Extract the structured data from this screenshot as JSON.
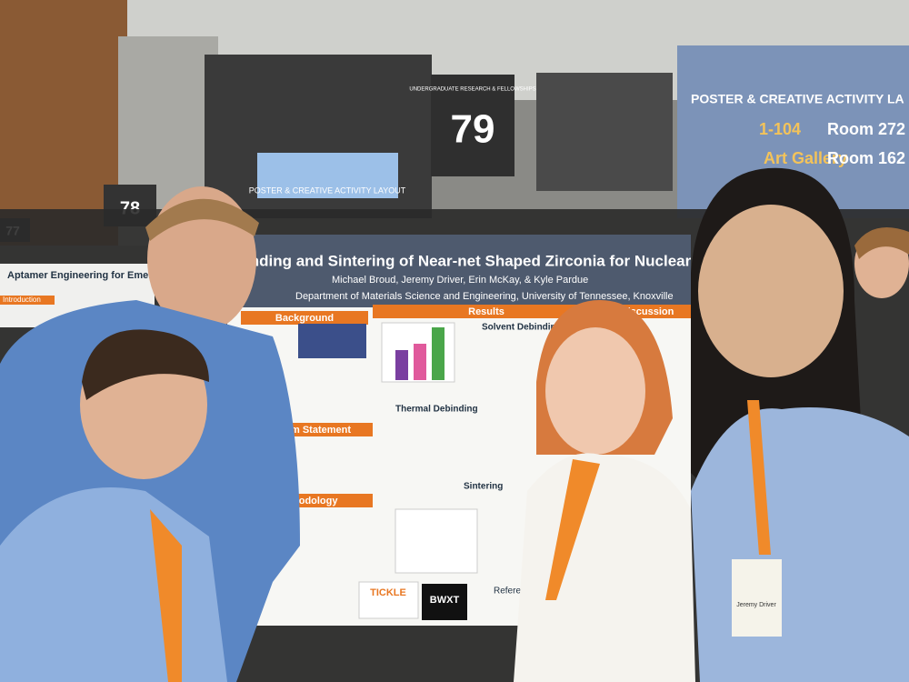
{
  "signs": {
    "number_main": "79",
    "number_left": "78",
    "number_far_left": "77",
    "organization": "UNDERGRADUATE RESEARCH & FELLOWSHIPS"
  },
  "screens": {
    "left_screen": "POSTER & CREATIVE ACTIVITY LAYOUT",
    "right_title": "POSTER & CREATIVE ACTIVITY LA",
    "right_range": "1-104",
    "right_room": "Room 272",
    "right_gallery": "Art Gallery",
    "right_room2": "Room 162"
  },
  "poster": {
    "title": "inding and Sintering of Near-net Shaped Zirconia for Nuclear Applic",
    "authors": "Michael Broud, Jeremy Driver, Erin McKay, & Kyle Pardue",
    "affiliation": "Department of Materials Science and Engineering, University of Tennessee, Knoxville",
    "sections": [
      "Background",
      "Results",
      "Discussion",
      "m Statement",
      "hodology"
    ],
    "subsections": [
      "Solvent Debinding",
      "Thermal Debinding",
      "Sintering"
    ],
    "logos": [
      "TICKLE",
      "BWXT",
      "References"
    ]
  },
  "neighbor_poster": {
    "title": "Aptamer Engineering for Emerg",
    "section": "Introduction"
  },
  "badge": {
    "name": "Jeremy Driver"
  }
}
